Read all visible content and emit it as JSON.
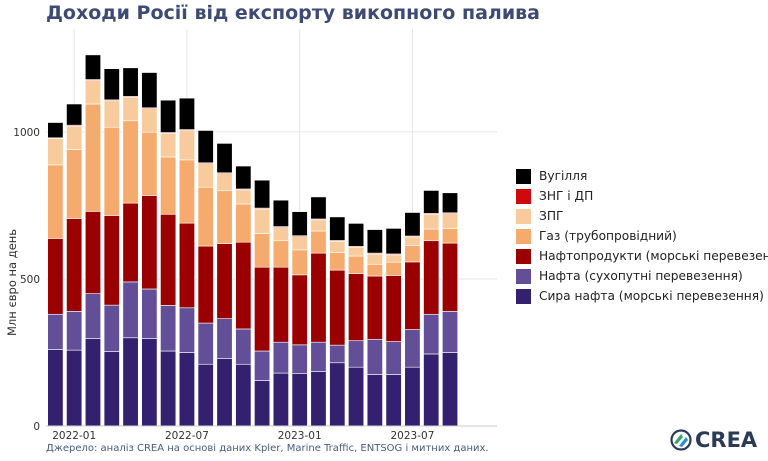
{
  "title": "Доходи Росії від експорту викопного палива",
  "source": "Джерело: аналіз CREA на основі даних Kpler, Marine Traffic, ENTSOG і митних даних.",
  "logo_text": "CREA",
  "colors": {
    "coal": "#000000",
    "lng": "#cf0a0a",
    "lpg": "#f8cb9c",
    "pipeline_gas": "#f4ab6d",
    "oil_products": "#9b0000",
    "pipeline_oil": "#634f98",
    "crude_oil": "#33206f"
  },
  "chart_data": {
    "type": "bar",
    "stacked": true,
    "title": "Доходи Росії від експорту викопного палива",
    "ylabel": "Млн євро на день",
    "xlabel": "",
    "ylim": [
      0,
      1350
    ],
    "yticks": [
      0,
      500,
      1000
    ],
    "xticks": [
      {
        "index": 1,
        "label": "2022-01"
      },
      {
        "index": 7,
        "label": "2022-07"
      },
      {
        "index": 13,
        "label": "2023-01"
      },
      {
        "index": 19,
        "label": "2023-07"
      }
    ],
    "categories": [
      "2021-12",
      "2022-01",
      "2022-02",
      "2022-03",
      "2022-04",
      "2022-05",
      "2022-06",
      "2022-07",
      "2022-08",
      "2022-09",
      "2022-10",
      "2022-11",
      "2022-12",
      "2023-01",
      "2023-02",
      "2023-03",
      "2023-04",
      "2023-05",
      "2023-06",
      "2023-07",
      "2023-08",
      "2023-09",
      "2023-10",
      "2023-11"
    ],
    "legend_position": "right",
    "grid": true,
    "series": [
      {
        "name": "Сира нафта (морські перевезення)",
        "color_key": "crude_oil",
        "values": [
          260,
          258,
          298,
          253,
          300,
          298,
          255,
          250,
          210,
          230,
          210,
          155,
          180,
          178,
          185,
          215,
          200,
          175,
          175,
          200,
          245,
          250,
          0,
          0
        ]
      },
      {
        "name": "Нафта (сухопутні перевезення)",
        "color_key": "pipeline_oil",
        "values": [
          120,
          132,
          152,
          158,
          190,
          168,
          155,
          152,
          140,
          135,
          120,
          100,
          105,
          98,
          100,
          60,
          90,
          120,
          112,
          128,
          135,
          140,
          0,
          0
        ]
      },
      {
        "name": "Нафтопродукти (морські перевезення)",
        "color_key": "oil_products",
        "values": [
          258,
          315,
          280,
          305,
          268,
          318,
          310,
          288,
          262,
          255,
          295,
          285,
          255,
          238,
          303,
          255,
          228,
          215,
          225,
          230,
          250,
          232,
          0,
          0
        ]
      },
      {
        "name": "Газ (трубопровідний)",
        "color_key": "pipeline_gas",
        "values": [
          250,
          235,
          365,
          300,
          280,
          215,
          195,
          215,
          200,
          180,
          130,
          115,
          90,
          85,
          75,
          60,
          60,
          40,
          45,
          55,
          40,
          50,
          0,
          0
        ]
      },
      {
        "name": "ЗПГ",
        "color_key": "lpg",
        "values": [
          90,
          80,
          80,
          90,
          80,
          80,
          80,
          100,
          80,
          58,
          48,
          83,
          45,
          45,
          38,
          38,
          30,
          35,
          25,
          30,
          50,
          50,
          0,
          0
        ]
      },
      {
        "name": "ЗНГ і ДП",
        "color_key": "lng",
        "values": [
          2,
          3,
          3,
          3,
          3,
          3,
          3,
          3,
          3,
          3,
          3,
          3,
          3,
          3,
          3,
          3,
          3,
          3,
          3,
          3,
          3,
          3,
          0,
          0
        ]
      },
      {
        "name": "Вугілля",
        "color_key": "coal",
        "values": [
          52,
          72,
          84,
          106,
          97,
          120,
          110,
          107,
          110,
          100,
          78,
          95,
          90,
          82,
          75,
          80,
          78,
          80,
          87,
          80,
          78,
          68,
          0,
          0
        ]
      }
    ]
  },
  "legend_order": [
    6,
    5,
    4,
    3,
    2,
    1,
    0
  ]
}
